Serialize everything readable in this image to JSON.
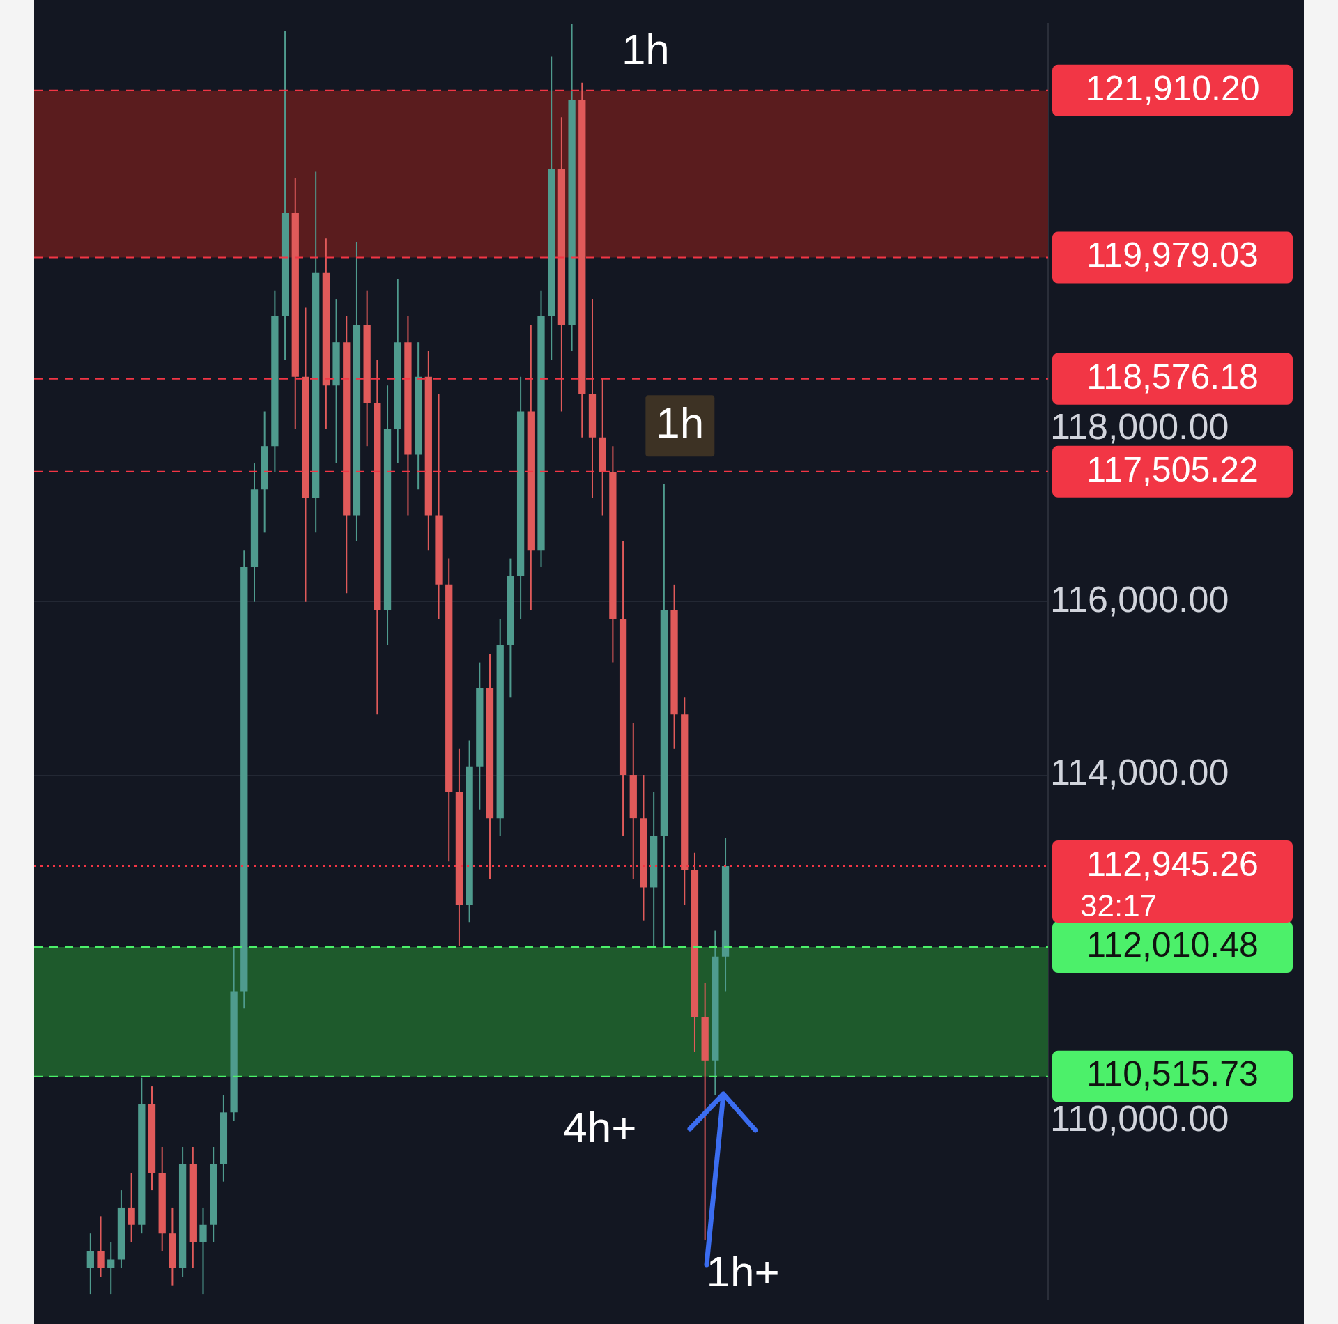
{
  "chart_data": {
    "type": "candlestick",
    "categories": [
      null,
      null,
      null,
      null,
      null,
      null,
      null,
      null,
      null,
      null,
      null,
      null,
      null,
      null,
      null,
      null,
      null,
      null,
      null,
      null,
      null,
      null,
      null,
      null,
      null,
      null,
      null,
      null,
      null,
      null,
      null,
      null,
      null,
      null,
      null,
      null,
      null,
      null,
      null,
      null,
      null,
      null,
      null,
      null,
      null,
      null,
      null,
      null,
      null,
      null,
      null,
      null,
      null,
      null,
      null,
      null,
      null,
      null,
      null,
      null,
      null,
      null,
      null,
      null,
      null,
      null,
      null,
      null,
      null,
      null,
      null,
      null,
      null,
      null,
      null,
      null,
      null,
      null,
      null,
      null,
      null,
      null,
      null,
      null,
      null,
      null,
      null,
      null,
      null,
      null,
      null,
      null,
      null,
      null,
      null,
      null,
      null,
      null,
      null
    ],
    "ohlc": [
      null,
      null,
      null,
      null,
      null,
      [
        108300,
        108700,
        108000,
        108500
      ],
      [
        108500,
        108900,
        108200,
        108300
      ],
      [
        108300,
        108600,
        108000,
        108400
      ],
      [
        108400,
        109200,
        108300,
        109000
      ],
      [
        109000,
        109400,
        108600,
        108800
      ],
      [
        108800,
        110500,
        108700,
        110200
      ],
      [
        110200,
        110400,
        109200,
        109400
      ],
      [
        109400,
        109700,
        108500,
        108700
      ],
      [
        108700,
        109000,
        108100,
        108300
      ],
      [
        108300,
        109700,
        108200,
        109500
      ],
      [
        109500,
        109700,
        108300,
        108600
      ],
      [
        108600,
        109000,
        108000,
        108800
      ],
      [
        108800,
        109700,
        108600,
        109500
      ],
      [
        109500,
        110300,
        109300,
        110100
      ],
      [
        110100,
        112000,
        110000,
        111500
      ],
      [
        111500,
        116600,
        111300,
        116400
      ],
      [
        116400,
        117600,
        116000,
        117300
      ],
      [
        117300,
        118200,
        116800,
        117800
      ],
      [
        117800,
        119600,
        117500,
        119300
      ],
      [
        119300,
        122600,
        118800,
        120500
      ],
      [
        120500,
        120900,
        118000,
        118600
      ],
      [
        118600,
        119400,
        116000,
        117200
      ],
      [
        117200,
        120970,
        116800,
        119800
      ],
      [
        119800,
        120200,
        118000,
        118500
      ],
      [
        118500,
        119500,
        117600,
        119000
      ],
      [
        119000,
        119300,
        116100,
        117000
      ],
      [
        117000,
        120160,
        116700,
        119200
      ],
      [
        119200,
        119600,
        117800,
        118300
      ],
      [
        118300,
        118800,
        114700,
        115900
      ],
      [
        115900,
        118500,
        115500,
        118000
      ],
      [
        118000,
        119730,
        117600,
        119000
      ],
      [
        119000,
        119300,
        117000,
        117700
      ],
      [
        117700,
        119000,
        117300,
        118600
      ],
      [
        118600,
        118900,
        116600,
        117000
      ],
      [
        117000,
        118400,
        115800,
        116200
      ],
      [
        116200,
        116500,
        113000,
        113800
      ],
      [
        113800,
        114300,
        112020,
        112500
      ],
      [
        112500,
        114400,
        112300,
        114100
      ],
      [
        114100,
        115300,
        113600,
        115000
      ],
      [
        115000,
        115400,
        112800,
        113500
      ],
      [
        113500,
        115800,
        113300,
        115500
      ],
      [
        115500,
        116500,
        114900,
        116300
      ],
      [
        116300,
        118600,
        115800,
        118200
      ],
      [
        118200,
        119200,
        115900,
        116600
      ],
      [
        116600,
        119600,
        116400,
        119300
      ],
      [
        119300,
        122300,
        118800,
        121000
      ],
      [
        121000,
        121600,
        118200,
        119200
      ],
      [
        119200,
        122680,
        118900,
        121800
      ],
      [
        121800,
        122000,
        117900,
        118400
      ],
      [
        118400,
        119500,
        117200,
        117900
      ],
      [
        117900,
        118580,
        117000,
        117500
      ],
      [
        117500,
        117800,
        115300,
        115800
      ],
      [
        115800,
        116700,
        113300,
        114000
      ],
      [
        114000,
        114600,
        112800,
        113500
      ],
      [
        113500,
        114000,
        112320,
        112700
      ],
      [
        112700,
        113800,
        112000,
        113300
      ],
      [
        113300,
        117360,
        112000,
        115900
      ],
      [
        115900,
        116200,
        114300,
        114700
      ],
      [
        114700,
        114900,
        112500,
        112900
      ],
      [
        112900,
        113100,
        110800,
        111200
      ],
      [
        111200,
        111600,
        108620,
        110700
      ],
      [
        110700,
        112200,
        110300,
        111900
      ],
      [
        111900,
        113270,
        111500,
        112945
      ],
      null,
      null,
      null,
      null,
      null,
      null,
      null,
      null,
      null,
      null,
      null,
      null,
      null,
      null,
      null,
      null,
      null,
      null,
      null,
      null,
      null,
      null,
      null,
      null,
      null,
      null,
      null,
      null,
      null,
      null,
      null
    ],
    "ylim": [
      107930,
      122680
    ],
    "yticks": [
      {
        "value": 110000,
        "label": "110,000.00"
      },
      {
        "value": 114000,
        "label": "114,000.00"
      },
      {
        "value": 116000,
        "label": "116,000.00"
      },
      {
        "value": 118000,
        "label": "118,000.00"
      }
    ],
    "grid": "y",
    "legend": false,
    "bands": [
      {
        "axis": "y",
        "from": 119979.03,
        "to": 121910.2,
        "color": "#5a1c1e"
      },
      {
        "axis": "y",
        "from": 110515.73,
        "to": 112010.48,
        "color": "#1e5a2c"
      }
    ],
    "ref_lines": [
      {
        "axis": "y",
        "value": 121910.2,
        "label": "121,910.20",
        "color": "#f23645",
        "line_style": "dashed"
      },
      {
        "axis": "y",
        "value": 119979.03,
        "label": "119,979.03",
        "color": "#f23645",
        "line_style": "dashed"
      },
      {
        "axis": "y",
        "value": 118576.18,
        "label": "118,576.18",
        "color": "#f23645",
        "line_style": "dashed"
      },
      {
        "axis": "y",
        "value": 117505.22,
        "label": "117,505.22",
        "color": "#f23645",
        "line_style": "dashed"
      },
      {
        "axis": "y",
        "value": 112945.26,
        "label": "112,945.26",
        "color": "#f23645",
        "line_style": "dotted"
      },
      {
        "axis": "y",
        "value": 112010.48,
        "label": "112,010.48",
        "color": "#4cf06a",
        "line_style": "dashed"
      },
      {
        "axis": "y",
        "value": 110515.73,
        "label": "110,515.73",
        "color": "#4cf06a",
        "line_style": "dashed"
      }
    ],
    "annotations": [
      "1h",
      "1h",
      "4h+",
      "1h+",
      "32:17"
    ]
  }
}
